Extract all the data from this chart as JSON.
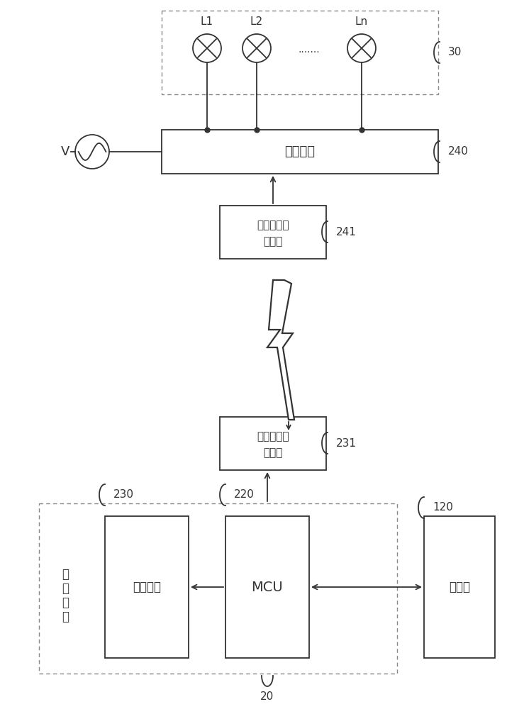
{
  "bg_color": "#ffffff",
  "line_color": "#333333",
  "label_30": "30",
  "label_240": "240",
  "label_241": "241",
  "label_230": "230",
  "label_220": "220",
  "label_231": "231",
  "label_120": "120",
  "label_20": "20",
  "label_V": "V",
  "label_L1": "L1",
  "label_L2": "L2",
  "label_Ln": "Ln",
  "label_dots": ".......",
  "label_ctrl": "控制开关",
  "label_mod2_line1": "第二无线通",
  "label_mod2_line2": "信模块",
  "label_mod1_line1": "第一无线通",
  "label_mod1_line2": "信模块",
  "label_camera_device_1": "摄",
  "label_camera_device_2": "像",
  "label_camera_device_3": "设",
  "label_camera_device_4": "备",
  "label_camera_module": "摄像模块",
  "label_mcu": "MCU",
  "label_main_board": "主控板"
}
